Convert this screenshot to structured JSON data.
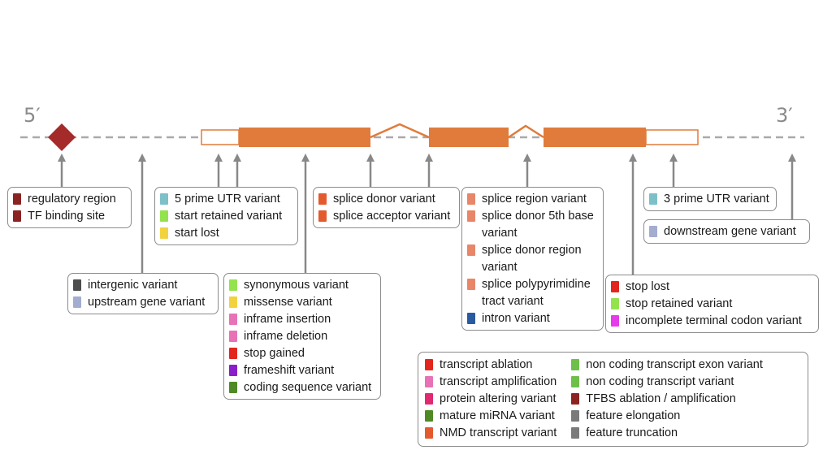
{
  "diagram": {
    "five_prime_label": "5′",
    "three_prime_label": "3′",
    "colors": {
      "exon": "#e07b3c",
      "line": "#aaaaaa",
      "arrow": "#888888",
      "regulatory": "#a52a2a"
    }
  },
  "boxes": [
    {
      "id": "regulatory",
      "items": [
        {
          "label": "regulatory region",
          "color": "#8b2323"
        },
        {
          "label": "TF binding site",
          "color": "#8b2323"
        }
      ]
    },
    {
      "id": "intergenic",
      "items": [
        {
          "label": "intergenic variant",
          "color": "#4d4d4d"
        },
        {
          "label": "upstream gene variant",
          "color": "#a3add0"
        }
      ]
    },
    {
      "id": "five-prime",
      "items": [
        {
          "label": "5 prime UTR variant",
          "color": "#7ec0c8"
        },
        {
          "label": "start retained variant",
          "color": "#94e34e"
        },
        {
          "label": "start lost",
          "color": "#f2d33e"
        }
      ]
    },
    {
      "id": "coding",
      "items": [
        {
          "label": "synonymous variant",
          "color": "#94e34e"
        },
        {
          "label": "missense variant",
          "color": "#f2d33e"
        },
        {
          "label": "inframe insertion",
          "color": "#e773b6"
        },
        {
          "label": "inframe deletion",
          "color": "#e773b6"
        },
        {
          "label": "stop gained",
          "color": "#e3261d"
        },
        {
          "label": "frameshift variant",
          "color": "#8a1ec9"
        },
        {
          "label": "coding sequence variant",
          "color": "#4f8a24"
        }
      ]
    },
    {
      "id": "splice",
      "items": [
        {
          "label": "splice donor variant",
          "color": "#e35b2d"
        },
        {
          "label": "splice acceptor variant",
          "color": "#e35b2d"
        }
      ]
    },
    {
      "id": "splice-region",
      "items": [
        {
          "label": "splice region variant",
          "color": "#e8866a"
        },
        {
          "label": "splice donor 5th base variant",
          "color": "#e8866a"
        },
        {
          "label": "splice donor region variant",
          "color": "#e8866a"
        },
        {
          "label": "splice polypyrimidine tract variant",
          "color": "#e8866a"
        },
        {
          "label": "intron variant",
          "color": "#2a5aa0"
        }
      ]
    },
    {
      "id": "three-prime",
      "items": [
        {
          "label": "3 prime UTR variant",
          "color": "#7ec0c8"
        }
      ]
    },
    {
      "id": "downstream",
      "items": [
        {
          "label": "downstream gene variant",
          "color": "#a3add0"
        }
      ]
    },
    {
      "id": "stop",
      "items": [
        {
          "label": "stop lost",
          "color": "#e3261d"
        },
        {
          "label": "stop retained variant",
          "color": "#94e34e"
        },
        {
          "label": "incomplete terminal codon variant",
          "color": "#e63be8"
        }
      ]
    }
  ],
  "legend": {
    "columns": [
      [
        {
          "label": "transcript ablation",
          "color": "#e3261d"
        },
        {
          "label": "transcript amplification",
          "color": "#e773b6"
        },
        {
          "label": "protein altering variant",
          "color": "#e02970"
        },
        {
          "label": "mature miRNA variant",
          "color": "#4f8a24"
        },
        {
          "label": "NMD transcript variant",
          "color": "#e35b2d"
        }
      ],
      [
        {
          "label": "non coding transcript exon variant",
          "color": "#6ec04a"
        },
        {
          "label": "non coding transcript variant",
          "color": "#6ec04a"
        },
        {
          "label": "TFBS ablation / amplification",
          "color": "#8b2323"
        },
        {
          "label": "feature elongation",
          "color": "#7a7a7a"
        },
        {
          "label": "feature truncation",
          "color": "#7a7a7a"
        }
      ]
    ]
  }
}
